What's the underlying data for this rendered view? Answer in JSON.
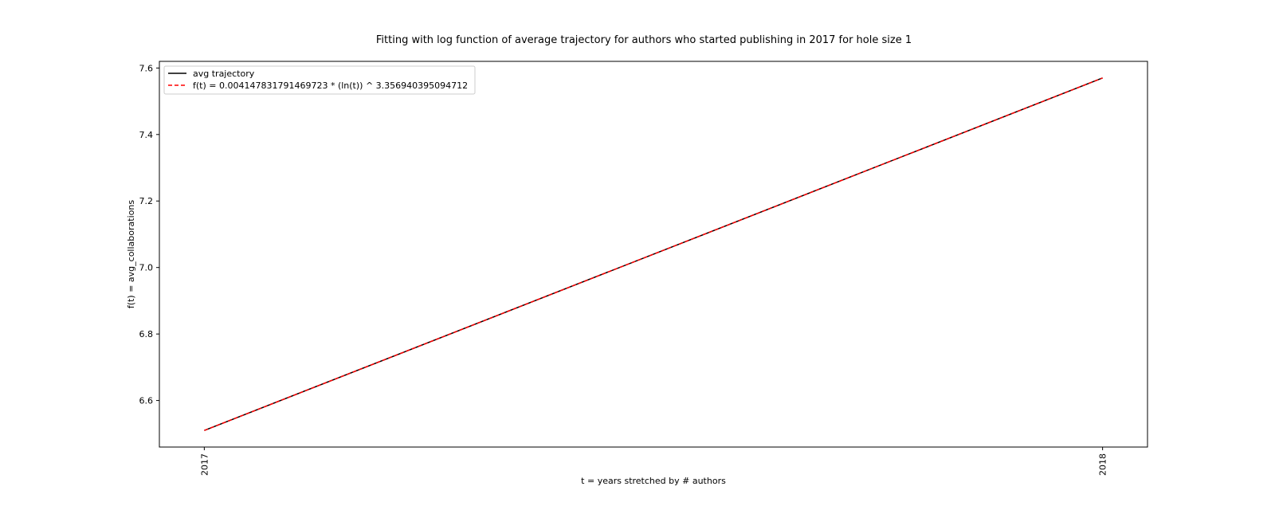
{
  "chart_data": {
    "type": "line",
    "title": "Fitting with log function of average trajectory for authors who started publishing in 2017 for hole size 1",
    "xlabel": "t = years stretched by # authors",
    "ylabel": "f(t) = avg_collaborations",
    "x_ticks": [
      "2017",
      "2018"
    ],
    "y_ticks": [
      6.6,
      6.8,
      7.0,
      7.2,
      7.4,
      7.6
    ],
    "xlim": [
      2016.95,
      2018.05
    ],
    "ylim": [
      6.46,
      7.62
    ],
    "grid": false,
    "legend_position": "top-left",
    "series": [
      {
        "name": "avg trajectory",
        "x": [
          2017,
          2018
        ],
        "y": [
          6.51,
          7.57
        ],
        "color": "#000000",
        "style": "solid"
      },
      {
        "name": "f(t) = 0.004147831791469723 * (ln(t)) ^ 3.356940395094712",
        "x": [
          2017,
          2018
        ],
        "y": [
          6.51,
          7.57
        ],
        "color": "#ff0000",
        "style": "dashed"
      }
    ]
  }
}
